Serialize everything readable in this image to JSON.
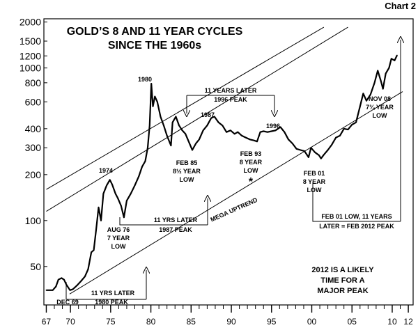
{
  "corner_label": "Chart 2",
  "chart_data": {
    "type": "line",
    "title": "GOLD’S 8 AND 11 YEAR CYCLES",
    "subtitle": "SINCE THE 1960s",
    "y_scale": "log",
    "ylim": [
      28,
      2100
    ],
    "xlim": [
      1966.7,
      2012.6
    ],
    "y_ticks": [
      {
        "value": 2000,
        "label": "2000"
      },
      {
        "value": 1500,
        "label": "1500"
      },
      {
        "value": 1200,
        "label": "1200"
      },
      {
        "value": 1000,
        "label": "1000"
      },
      {
        "value": 800,
        "label": "800"
      },
      {
        "value": 600,
        "label": "600"
      },
      {
        "value": 400,
        "label": "400"
      },
      {
        "value": 300,
        "label": "300"
      },
      {
        "value": 200,
        "label": "200"
      },
      {
        "value": 100,
        "label": "100"
      },
      {
        "value": 50,
        "label": "50"
      }
    ],
    "x_ticks": [
      {
        "value": 1967,
        "label": "67"
      },
      {
        "value": 1970,
        "label": "70"
      },
      {
        "value": 1975,
        "label": "75"
      },
      {
        "value": 1980,
        "label": "80"
      },
      {
        "value": 1985,
        "label": "85"
      },
      {
        "value": 1990,
        "label": "90"
      },
      {
        "value": 1995,
        "label": "95"
      },
      {
        "value": 2000,
        "label": "00"
      },
      {
        "value": 2005,
        "label": "05"
      },
      {
        "value": 2010,
        "label": "10"
      },
      {
        "value": 2012,
        "label": "12"
      }
    ],
    "grid": false,
    "series": [
      {
        "points": [
          [
            1967.0,
            35
          ],
          [
            1967.8,
            35
          ],
          [
            1968.2,
            37
          ],
          [
            1968.5,
            41
          ],
          [
            1968.9,
            42
          ],
          [
            1969.2,
            41
          ],
          [
            1969.5,
            38
          ],
          [
            1969.95,
            35
          ],
          [
            1970.3,
            35.5
          ],
          [
            1970.8,
            37.5
          ],
          [
            1971.3,
            40
          ],
          [
            1971.8,
            43
          ],
          [
            1972.2,
            48
          ],
          [
            1972.6,
            62
          ],
          [
            1972.9,
            64
          ],
          [
            1973.2,
            88
          ],
          [
            1973.5,
            122
          ],
          [
            1973.8,
            100
          ],
          [
            1974.1,
            150
          ],
          [
            1974.5,
            170
          ],
          [
            1974.9,
            185
          ],
          [
            1975.2,
            172
          ],
          [
            1975.6,
            150
          ],
          [
            1975.9,
            140
          ],
          [
            1976.3,
            125
          ],
          [
            1976.65,
            105
          ],
          [
            1977.0,
            135
          ],
          [
            1977.5,
            150
          ],
          [
            1978.0,
            170
          ],
          [
            1978.5,
            195
          ],
          [
            1978.9,
            225
          ],
          [
            1979.3,
            245
          ],
          [
            1979.6,
            300
          ],
          [
            1979.85,
            420
          ],
          [
            1980.05,
            790
          ],
          [
            1980.25,
            560
          ],
          [
            1980.5,
            650
          ],
          [
            1980.8,
            600
          ],
          [
            1981.2,
            480
          ],
          [
            1981.6,
            420
          ],
          [
            1982.0,
            360
          ],
          [
            1982.5,
            310
          ],
          [
            1982.7,
            440
          ],
          [
            1983.1,
            480
          ],
          [
            1983.5,
            420
          ],
          [
            1983.9,
            390
          ],
          [
            1984.3,
            370
          ],
          [
            1984.7,
            330
          ],
          [
            1985.15,
            290
          ],
          [
            1985.6,
            320
          ],
          [
            1986.0,
            340
          ],
          [
            1986.5,
            390
          ],
          [
            1987.0,
            420
          ],
          [
            1987.5,
            470
          ],
          [
            1987.9,
            480
          ],
          [
            1988.4,
            440
          ],
          [
            1988.9,
            420
          ],
          [
            1989.4,
            380
          ],
          [
            1989.9,
            390
          ],
          [
            1990.4,
            370
          ],
          [
            1990.8,
            380
          ],
          [
            1991.3,
            360
          ],
          [
            1991.8,
            350
          ],
          [
            1992.3,
            340
          ],
          [
            1992.8,
            335
          ],
          [
            1993.2,
            330
          ],
          [
            1993.6,
            380
          ],
          [
            1994.0,
            385
          ],
          [
            1994.5,
            380
          ],
          [
            1995.0,
            385
          ],
          [
            1995.5,
            390
          ],
          [
            1996.1,
            410
          ],
          [
            1996.6,
            380
          ],
          [
            1997.1,
            340
          ],
          [
            1997.6,
            320
          ],
          [
            1998.1,
            295
          ],
          [
            1998.6,
            290
          ],
          [
            1999.1,
            285
          ],
          [
            1999.6,
            260
          ],
          [
            1999.9,
            300
          ],
          [
            2000.4,
            280
          ],
          [
            2000.9,
            268
          ],
          [
            2001.15,
            255
          ],
          [
            2001.5,
            270
          ],
          [
            2002.0,
            290
          ],
          [
            2002.5,
            315
          ],
          [
            2003.0,
            350
          ],
          [
            2003.5,
            360
          ],
          [
            2004.0,
            400
          ],
          [
            2004.5,
            395
          ],
          [
            2005.0,
            425
          ],
          [
            2005.5,
            440
          ],
          [
            2006.0,
            560
          ],
          [
            2006.4,
            680
          ],
          [
            2006.8,
            610
          ],
          [
            2007.3,
            670
          ],
          [
            2007.8,
            800
          ],
          [
            2008.2,
            960
          ],
          [
            2008.6,
            820
          ],
          [
            2008.85,
            730
          ],
          [
            2009.2,
            920
          ],
          [
            2009.6,
            1000
          ],
          [
            2009.9,
            1150
          ],
          [
            2010.3,
            1120
          ],
          [
            2010.6,
            1210
          ]
        ]
      }
    ],
    "channel_lines": [
      {
        "from": [
          1967.0,
          160
        ],
        "to": [
          2001.5,
          1850
        ]
      },
      {
        "from": [
          1967.0,
          115
        ],
        "to": [
          2004.5,
          1850
        ]
      },
      {
        "from": [
          1969.9,
          33
        ],
        "to": [
          2011.3,
          700
        ]
      }
    ],
    "annotations": {
      "y1974": "1974",
      "y1980": "1980",
      "y1987": "1987",
      "y1996": "1996",
      "aug76": [
        "AUG 76",
        "7 YEAR",
        "LOW"
      ],
      "feb85": [
        "FEB 85",
        "8½ YEAR",
        "LOW"
      ],
      "feb93": [
        "FEB 93",
        "8 YEAR",
        "LOW"
      ],
      "feb93_star": "*",
      "feb01": [
        "FEB 01",
        "8 YEAR",
        "LOW"
      ],
      "nov08": [
        "NOV 08",
        "7¾ YEAR",
        "LOW"
      ],
      "dec69": "DEC 69",
      "mega_uptrend": "MEGA  UPTREND",
      "bracket_11y_top": [
        "11 YEARS LATER",
        "1996 PEAK"
      ],
      "bracket_1980": [
        "11 YRS LATER",
        "1980 PEAK"
      ],
      "bracket_1987": [
        "11 YRS LATER",
        "1987 PEAK"
      ],
      "bracket_2012": [
        "FEB 01 LOW, 11 YEARS",
        "LATER = FEB 2012 PEAK"
      ],
      "conclusion": [
        "2012 IS A LIKELY",
        "TIME FOR A",
        "MAJOR PEAK"
      ]
    }
  }
}
